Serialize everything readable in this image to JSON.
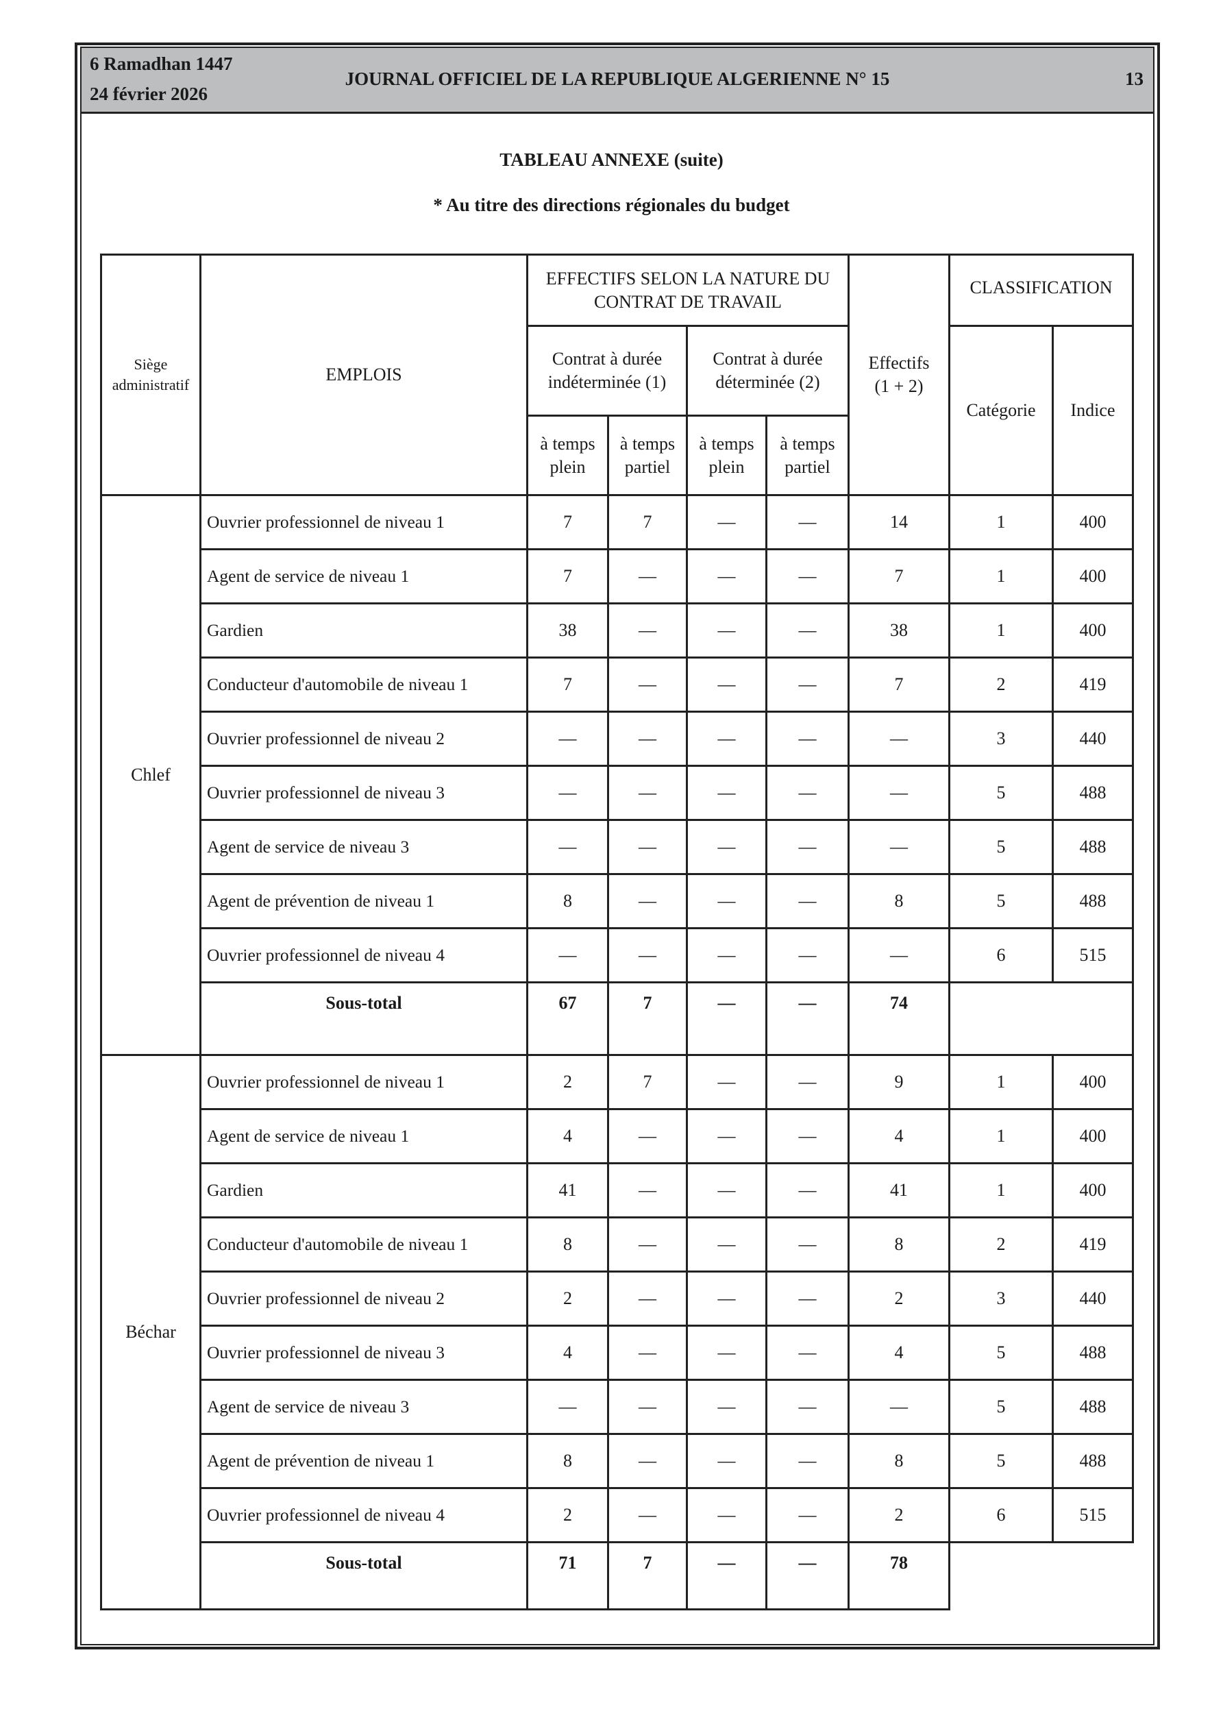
{
  "header": {
    "date_hijri": "6 Ramadhan 1447",
    "date_gregorian": "24 février 2026",
    "journal_title": "JOURNAL OFFICIEL DE LA REPUBLIQUE ALGERIENNE N° 15",
    "page_number": "13"
  },
  "title": "TABLEAU ANNEXE (suite)",
  "subtitle": "* Au titre des directions régionales du budget",
  "table": {
    "headers": {
      "siege": "Siège administratif",
      "emplois": "EMPLOIS",
      "effectifs_nature": "EFFECTIFS SELON LA NATURE DU CONTRAT DE TRAVAIL",
      "cdi": "Contrat à durée indéterminée (1)",
      "cdd": "Contrat à durée déterminée (2)",
      "temps_plein": "à temps plein",
      "temps_partiel": "à temps partiel",
      "effectifs_total": "Effectifs (1 + 2)",
      "classification": "CLASSIFICATION",
      "categorie": "Catégorie",
      "indice": "Indice"
    },
    "groups": [
      {
        "siege": "Chlef",
        "rows": [
          [
            "Ouvrier professionnel de niveau 1",
            "7",
            "7",
            "—",
            "—",
            "14",
            "1",
            "400"
          ],
          [
            "Agent de service de niveau 1",
            "7",
            "—",
            "—",
            "—",
            "7",
            "1",
            "400"
          ],
          [
            "Gardien",
            "38",
            "—",
            "—",
            "—",
            "38",
            "1",
            "400"
          ],
          [
            "Conducteur d'automobile de niveau 1",
            "7",
            "—",
            "—",
            "—",
            "7",
            "2",
            "419"
          ],
          [
            "Ouvrier professionnel de niveau 2",
            "—",
            "—",
            "—",
            "—",
            "—",
            "3",
            "440"
          ],
          [
            "Ouvrier professionnel de niveau 3",
            "—",
            "—",
            "—",
            "—",
            "—",
            "5",
            "488"
          ],
          [
            "Agent de service de niveau 3",
            "—",
            "—",
            "—",
            "—",
            "—",
            "5",
            "488"
          ],
          [
            "Agent de prévention de niveau 1",
            "8",
            "—",
            "—",
            "—",
            "8",
            "5",
            "488"
          ],
          [
            "Ouvrier professionnel de niveau 4",
            "—",
            "—",
            "—",
            "—",
            "—",
            "6",
            "515"
          ]
        ],
        "subtotal": [
          "Sous-total",
          "67",
          "7",
          "—",
          "—",
          "74"
        ]
      },
      {
        "siege": "Béchar",
        "rows": [
          [
            "Ouvrier professionnel de niveau 1",
            "2",
            "7",
            "—",
            "—",
            "9",
            "1",
            "400"
          ],
          [
            "Agent de service de niveau 1",
            "4",
            "—",
            "—",
            "—",
            "4",
            "1",
            "400"
          ],
          [
            "Gardien",
            "41",
            "—",
            "—",
            "—",
            "41",
            "1",
            "400"
          ],
          [
            "Conducteur d'automobile de niveau 1",
            "8",
            "—",
            "—",
            "—",
            "8",
            "2",
            "419"
          ],
          [
            "Ouvrier professionnel de niveau 2",
            "2",
            "—",
            "—",
            "—",
            "2",
            "3",
            "440"
          ],
          [
            "Ouvrier professionnel de niveau 3",
            "4",
            "—",
            "—",
            "—",
            "4",
            "5",
            "488"
          ],
          [
            "Agent de service de niveau 3",
            "—",
            "—",
            "—",
            "—",
            "—",
            "5",
            "488"
          ],
          [
            "Agent de prévention de niveau 1",
            "8",
            "—",
            "—",
            "—",
            "8",
            "5",
            "488"
          ],
          [
            "Ouvrier professionnel de niveau 4",
            "2",
            "—",
            "—",
            "—",
            "2",
            "6",
            "515"
          ]
        ],
        "subtotal": [
          "Sous-total",
          "71",
          "7",
          "—",
          "—",
          "78"
        ]
      }
    ]
  }
}
